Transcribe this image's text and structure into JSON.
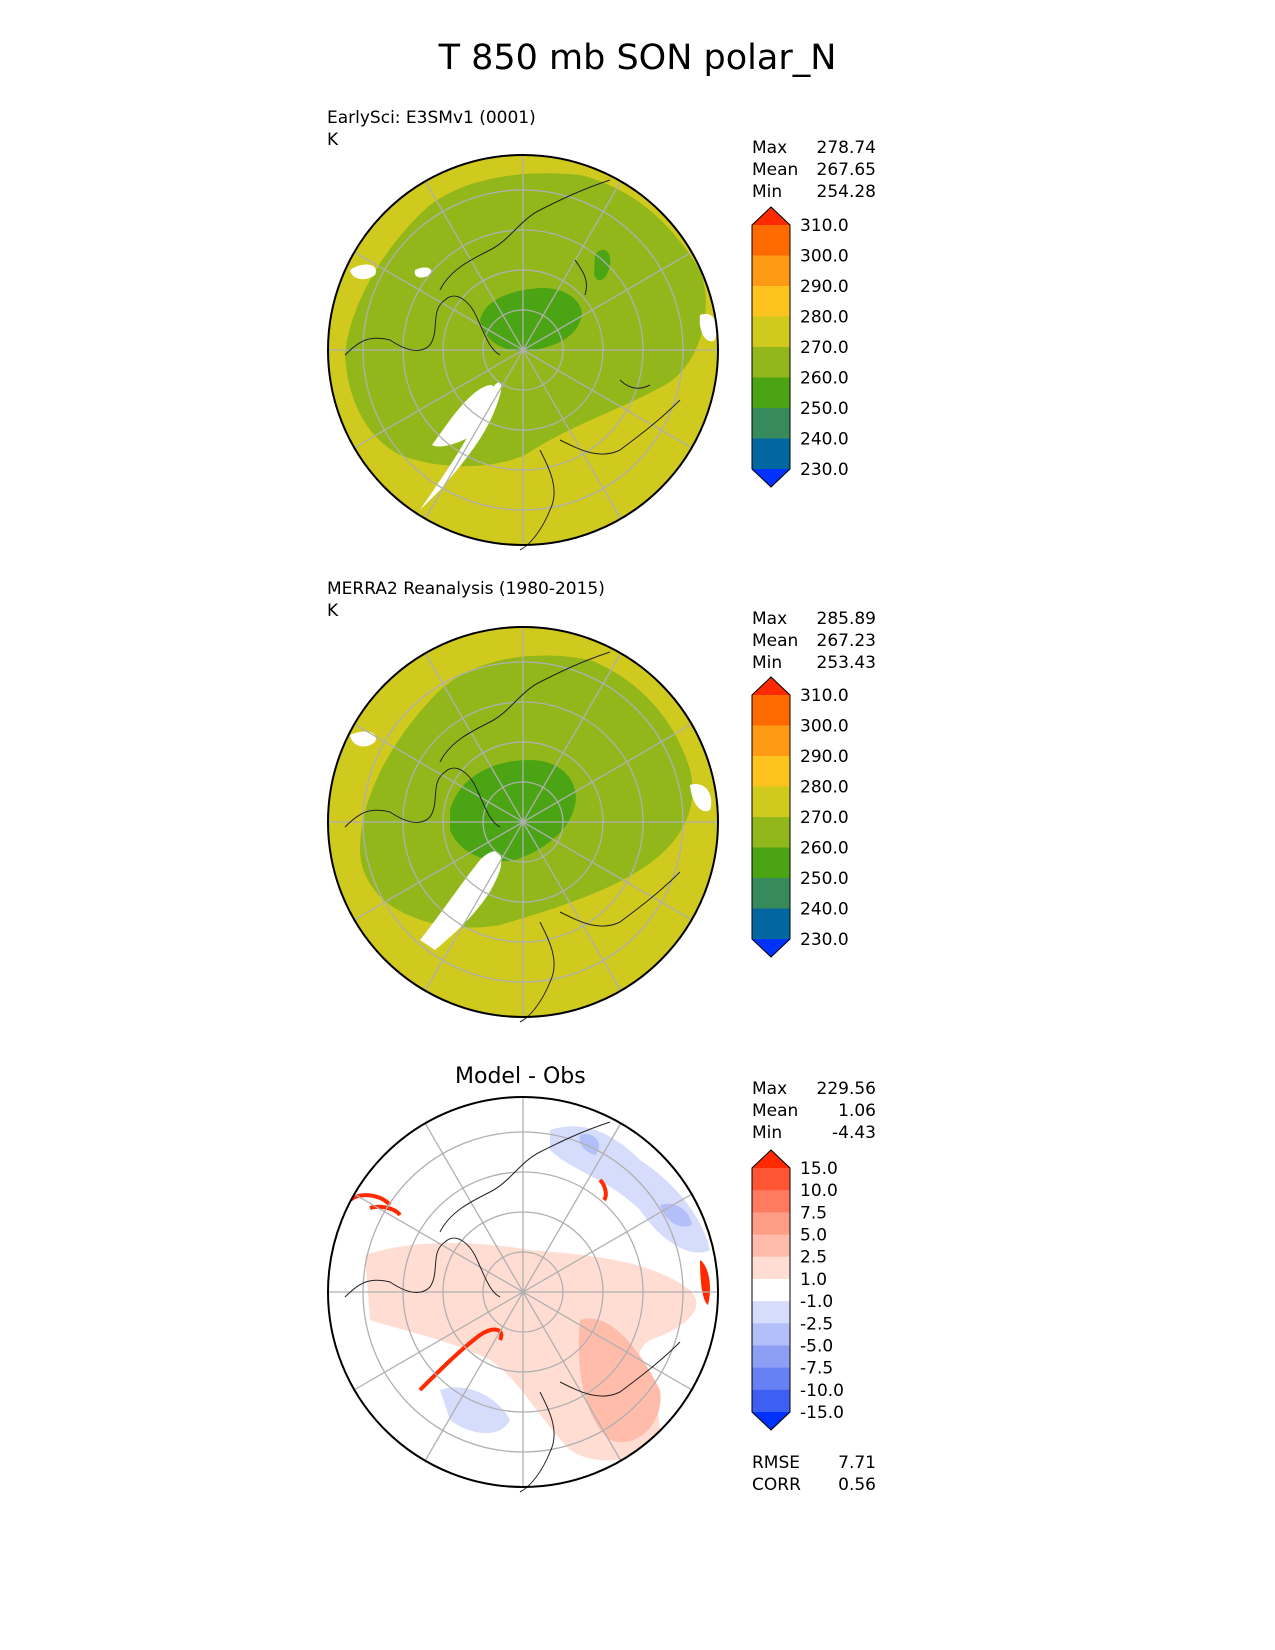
{
  "main_title": "T 850 mb SON polar_N",
  "panels": [
    {
      "title_line1": "EarlySci: E3SMv1 (0001)",
      "title_line2": "K",
      "stats": [
        {
          "label": "Max",
          "value": "278.74"
        },
        {
          "label": "Mean",
          "value": "267.65"
        },
        {
          "label": "Min",
          "value": "254.28"
        }
      ]
    },
    {
      "title_line1": "MERRA2 Reanalysis (1980-2015)",
      "title_line2": "K",
      "stats": [
        {
          "label": "Max",
          "value": "285.89"
        },
        {
          "label": "Mean",
          "value": "267.23"
        },
        {
          "label": "Min",
          "value": "253.43"
        }
      ]
    },
    {
      "title": "Model - Obs",
      "stats": [
        {
          "label": "Max",
          "value": "229.56"
        },
        {
          "label": "Mean",
          "value": "1.06"
        },
        {
          "label": "Min",
          "value": "-4.43"
        }
      ],
      "metrics": [
        {
          "label": "RMSE",
          "value": "7.71"
        },
        {
          "label": "CORR",
          "value": "0.56"
        }
      ]
    }
  ],
  "colorbar_abs": {
    "labels": [
      "310.0",
      "300.0",
      "290.0",
      "280.0",
      "270.0",
      "260.0",
      "250.0",
      "240.0",
      "230.0"
    ],
    "colors": [
      "#ff2a00",
      "#ff6a00",
      "#ff9a14",
      "#fec31f",
      "#d0c91e",
      "#91b71a",
      "#4aa414",
      "#368a5c",
      "#0067a0",
      "#0032ff"
    ]
  },
  "colorbar_diff": {
    "labels": [
      "15.0",
      "10.0",
      "7.5",
      "5.0",
      "2.5",
      "1.0",
      "-1.0",
      "-2.5",
      "-5.0",
      "-7.5",
      "-10.0",
      "-15.0"
    ],
    "colors": [
      "#ff2a00",
      "#ff5533",
      "#ff7a5e",
      "#ff9c86",
      "#ffbcab",
      "#ffddd3",
      "#ffffff",
      "#d6dcfb",
      "#b3bff8",
      "#8c9ff5",
      "#6780f3",
      "#3d5ff2",
      "#0032ff"
    ]
  },
  "chart_data": [
    {
      "type": "heatmap",
      "title": "EarlySci: E3SMv1 (0001)",
      "units": "K",
      "projection": "polar stereographic (north)",
      "levels": [
        230,
        240,
        250,
        260,
        270,
        280,
        290,
        300,
        310
      ],
      "max": 278.74,
      "mean": 267.65,
      "min": 254.28
    },
    {
      "type": "heatmap",
      "title": "MERRA2 Reanalysis (1980-2015)",
      "units": "K",
      "projection": "polar stereographic (north)",
      "levels": [
        230,
        240,
        250,
        260,
        270,
        280,
        290,
        300,
        310
      ],
      "max": 285.89,
      "mean": 267.23,
      "min": 253.43
    },
    {
      "type": "heatmap",
      "title": "Model - Obs",
      "projection": "polar stereographic (north)",
      "levels": [
        -15,
        -10,
        -7.5,
        -5,
        -2.5,
        -1,
        1,
        2.5,
        5,
        7.5,
        10,
        15
      ],
      "max": 229.56,
      "mean": 1.06,
      "min": -4.43,
      "rmse": 7.71,
      "corr": 0.56
    }
  ]
}
